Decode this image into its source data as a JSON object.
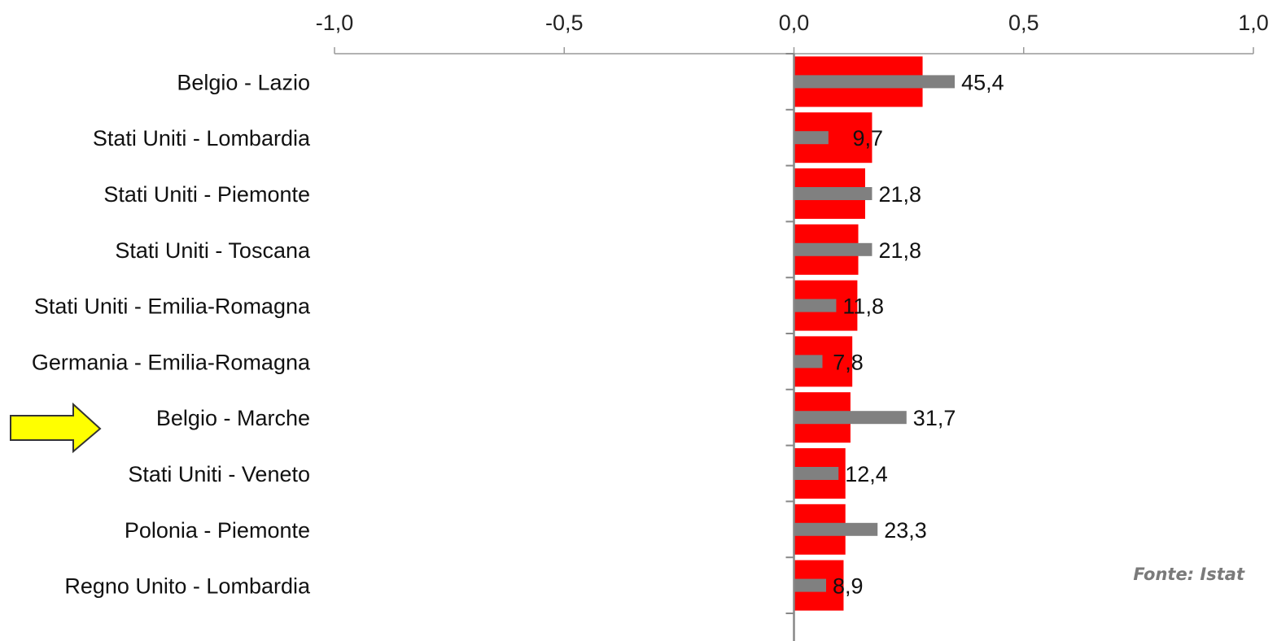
{
  "source_note": "Fonte: Istat",
  "colors": {
    "red_series": "#ff0000",
    "gray_series": "#808080",
    "arrow_fill": "#ffff00",
    "arrow_stroke": "#333333"
  },
  "highlight_marker": {
    "icon": "right-arrow-icon",
    "category": "Belgio - Marche"
  },
  "chart_data": {
    "type": "bar",
    "orientation": "horizontal",
    "xlim": [
      -1.0,
      1.0
    ],
    "x_ticks": [
      "-1,0",
      "-0,5",
      "0,0",
      "0,5",
      "1,0"
    ],
    "x_tick_values": [
      -1.0,
      -0.5,
      0.0,
      0.5,
      1.0
    ],
    "axis_position": "top",
    "grid": false,
    "categories": [
      "Belgio - Lazio",
      "Stati Uniti - Lombardia",
      "Stati Uniti - Piemonte",
      "Stati Uniti - Toscana",
      "Stati Uniti - Emilia-Romagna",
      "Germania - Emilia-Romagna",
      "Belgio - Marche",
      "Stati Uniti - Veneto",
      "Polonia - Piemonte",
      "Regno Unito - Lombardia"
    ],
    "series": [
      {
        "values": [
          0.28,
          0.17,
          0.155,
          0.14,
          0.138,
          0.127,
          0.123,
          0.112,
          0.112,
          0.108
        ]
      },
      {
        "values": [
          0.35,
          0.075,
          0.17,
          0.17,
          0.092,
          0.062,
          0.245,
          0.097,
          0.182,
          0.07
        ]
      }
    ],
    "data_labels": [
      "45,4",
      "9,7",
      "21,8",
      "21,8",
      "11,8",
      "7,8",
      "31,7",
      "12,4",
      "23,3",
      "8,9"
    ]
  }
}
